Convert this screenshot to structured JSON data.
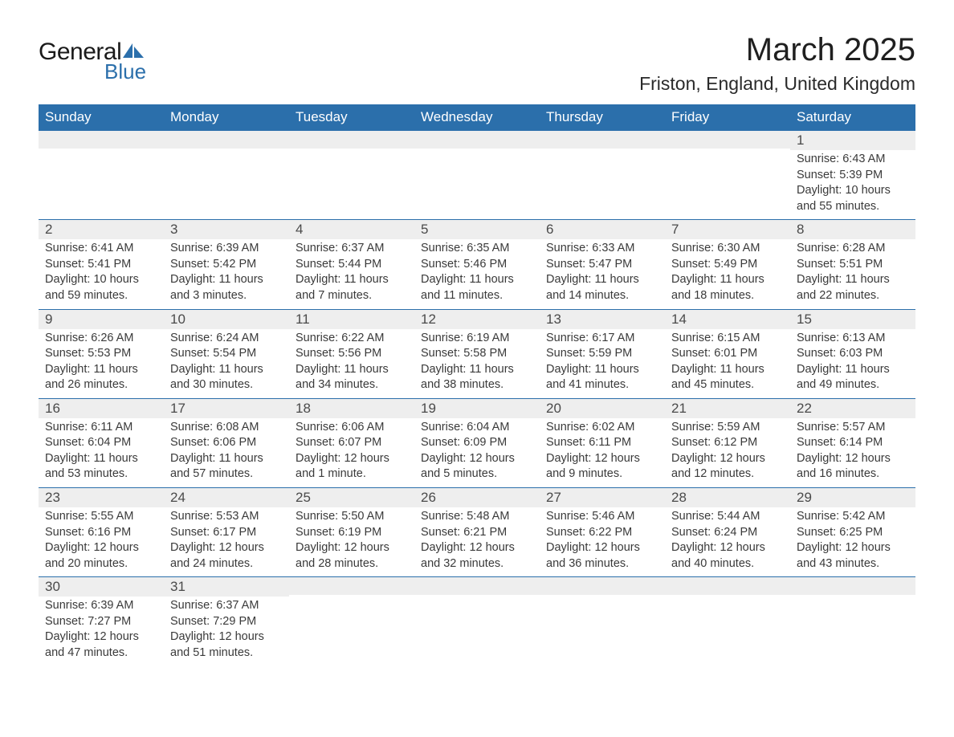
{
  "brand": {
    "word1": "General",
    "word2": "Blue"
  },
  "title": "March 2025",
  "location": "Friston, England, United Kingdom",
  "colors": {
    "header_bg": "#2b6fab",
    "header_text": "#ffffff",
    "daynum_bg": "#eeeeee",
    "row_divider": "#2b6fab",
    "body_text": "#3a3a3a",
    "logo_blue": "#2b6fab"
  },
  "layout": {
    "columns": 7,
    "rows": 6,
    "first_day_column_index": 6
  },
  "weekdays": [
    "Sunday",
    "Monday",
    "Tuesday",
    "Wednesday",
    "Thursday",
    "Friday",
    "Saturday"
  ],
  "days": [
    {
      "n": 1,
      "sunrise": "6:43 AM",
      "sunset": "5:39 PM",
      "daylight": "10 hours and 55 minutes."
    },
    {
      "n": 2,
      "sunrise": "6:41 AM",
      "sunset": "5:41 PM",
      "daylight": "10 hours and 59 minutes."
    },
    {
      "n": 3,
      "sunrise": "6:39 AM",
      "sunset": "5:42 PM",
      "daylight": "11 hours and 3 minutes."
    },
    {
      "n": 4,
      "sunrise": "6:37 AM",
      "sunset": "5:44 PM",
      "daylight": "11 hours and 7 minutes."
    },
    {
      "n": 5,
      "sunrise": "6:35 AM",
      "sunset": "5:46 PM",
      "daylight": "11 hours and 11 minutes."
    },
    {
      "n": 6,
      "sunrise": "6:33 AM",
      "sunset": "5:47 PM",
      "daylight": "11 hours and 14 minutes."
    },
    {
      "n": 7,
      "sunrise": "6:30 AM",
      "sunset": "5:49 PM",
      "daylight": "11 hours and 18 minutes."
    },
    {
      "n": 8,
      "sunrise": "6:28 AM",
      "sunset": "5:51 PM",
      "daylight": "11 hours and 22 minutes."
    },
    {
      "n": 9,
      "sunrise": "6:26 AM",
      "sunset": "5:53 PM",
      "daylight": "11 hours and 26 minutes."
    },
    {
      "n": 10,
      "sunrise": "6:24 AM",
      "sunset": "5:54 PM",
      "daylight": "11 hours and 30 minutes."
    },
    {
      "n": 11,
      "sunrise": "6:22 AM",
      "sunset": "5:56 PM",
      "daylight": "11 hours and 34 minutes."
    },
    {
      "n": 12,
      "sunrise": "6:19 AM",
      "sunset": "5:58 PM",
      "daylight": "11 hours and 38 minutes."
    },
    {
      "n": 13,
      "sunrise": "6:17 AM",
      "sunset": "5:59 PM",
      "daylight": "11 hours and 41 minutes."
    },
    {
      "n": 14,
      "sunrise": "6:15 AM",
      "sunset": "6:01 PM",
      "daylight": "11 hours and 45 minutes."
    },
    {
      "n": 15,
      "sunrise": "6:13 AM",
      "sunset": "6:03 PM",
      "daylight": "11 hours and 49 minutes."
    },
    {
      "n": 16,
      "sunrise": "6:11 AM",
      "sunset": "6:04 PM",
      "daylight": "11 hours and 53 minutes."
    },
    {
      "n": 17,
      "sunrise": "6:08 AM",
      "sunset": "6:06 PM",
      "daylight": "11 hours and 57 minutes."
    },
    {
      "n": 18,
      "sunrise": "6:06 AM",
      "sunset": "6:07 PM",
      "daylight": "12 hours and 1 minute."
    },
    {
      "n": 19,
      "sunrise": "6:04 AM",
      "sunset": "6:09 PM",
      "daylight": "12 hours and 5 minutes."
    },
    {
      "n": 20,
      "sunrise": "6:02 AM",
      "sunset": "6:11 PM",
      "daylight": "12 hours and 9 minutes."
    },
    {
      "n": 21,
      "sunrise": "5:59 AM",
      "sunset": "6:12 PM",
      "daylight": "12 hours and 12 minutes."
    },
    {
      "n": 22,
      "sunrise": "5:57 AM",
      "sunset": "6:14 PM",
      "daylight": "12 hours and 16 minutes."
    },
    {
      "n": 23,
      "sunrise": "5:55 AM",
      "sunset": "6:16 PM",
      "daylight": "12 hours and 20 minutes."
    },
    {
      "n": 24,
      "sunrise": "5:53 AM",
      "sunset": "6:17 PM",
      "daylight": "12 hours and 24 minutes."
    },
    {
      "n": 25,
      "sunrise": "5:50 AM",
      "sunset": "6:19 PM",
      "daylight": "12 hours and 28 minutes."
    },
    {
      "n": 26,
      "sunrise": "5:48 AM",
      "sunset": "6:21 PM",
      "daylight": "12 hours and 32 minutes."
    },
    {
      "n": 27,
      "sunrise": "5:46 AM",
      "sunset": "6:22 PM",
      "daylight": "12 hours and 36 minutes."
    },
    {
      "n": 28,
      "sunrise": "5:44 AM",
      "sunset": "6:24 PM",
      "daylight": "12 hours and 40 minutes."
    },
    {
      "n": 29,
      "sunrise": "5:42 AM",
      "sunset": "6:25 PM",
      "daylight": "12 hours and 43 minutes."
    },
    {
      "n": 30,
      "sunrise": "6:39 AM",
      "sunset": "7:27 PM",
      "daylight": "12 hours and 47 minutes."
    },
    {
      "n": 31,
      "sunrise": "6:37 AM",
      "sunset": "7:29 PM",
      "daylight": "12 hours and 51 minutes."
    }
  ],
  "labels": {
    "sunrise": "Sunrise: ",
    "sunset": "Sunset: ",
    "daylight": "Daylight: "
  }
}
